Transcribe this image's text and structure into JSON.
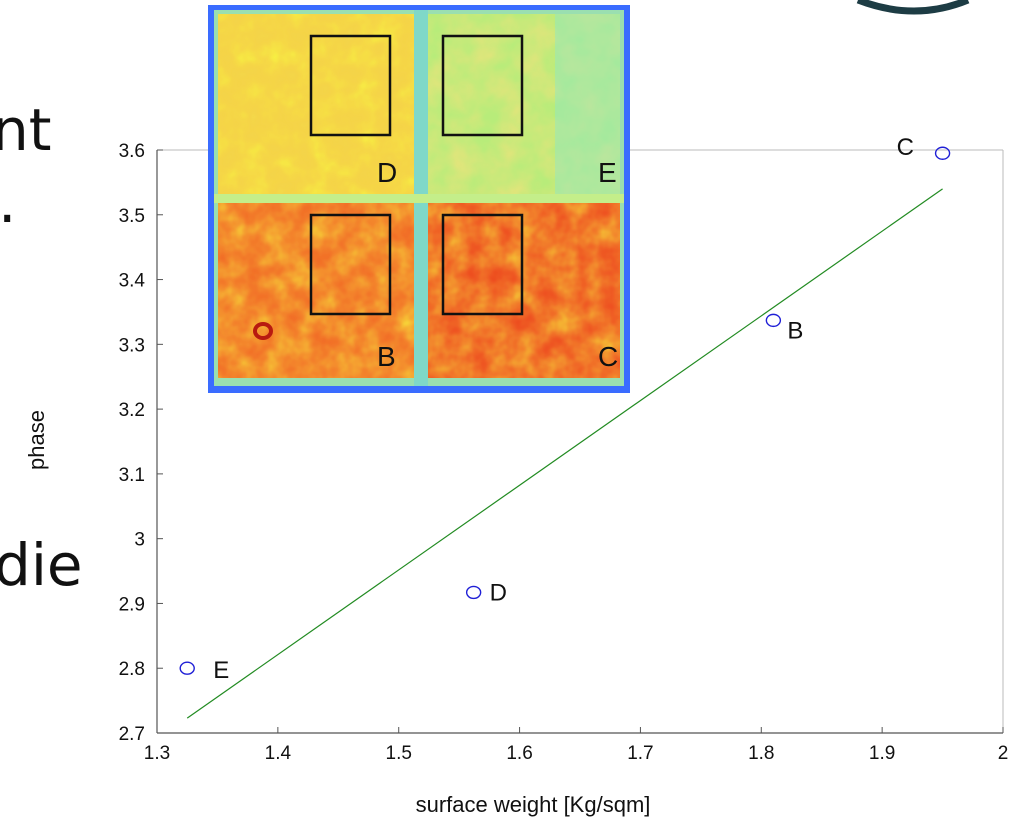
{
  "slide": {
    "text_fragments": [
      "nt",
      ".",
      "die"
    ]
  },
  "chart_data": {
    "type": "scatter",
    "xlabel": "surface weight [Kg/sqm]",
    "ylabel": "phase",
    "xlim": [
      1.3,
      2.0
    ],
    "ylim": [
      2.7,
      3.6
    ],
    "x_ticks": [
      "1.3",
      "1.4",
      "1.5",
      "1.6",
      "1.7",
      "1.8",
      "1.9",
      "2"
    ],
    "y_ticks": [
      "2.7",
      "2.8",
      "2.9",
      "3",
      "3.1",
      "3.2",
      "3.3",
      "3.4",
      "3.5",
      "3.6"
    ],
    "grid": false,
    "points": [
      {
        "label": "E",
        "x": 1.325,
        "y": 2.8
      },
      {
        "label": "D",
        "x": 1.562,
        "y": 2.917
      },
      {
        "label": "B",
        "x": 1.81,
        "y": 3.337
      },
      {
        "label": "C",
        "x": 1.95,
        "y": 3.595
      }
    ],
    "fit_line": {
      "x": [
        1.325,
        1.95
      ],
      "y": [
        2.723,
        3.54
      ]
    },
    "colors": {
      "marker": "#1f1fd6",
      "fit": "#228b22",
      "axis": "#555555"
    }
  },
  "inset_heatmap": {
    "panel_labels": [
      "D",
      "E",
      "B",
      "C"
    ],
    "colors": {
      "warm": "#e8401a",
      "cool": "#8fe0a0",
      "frame": "#1e3cff"
    }
  }
}
